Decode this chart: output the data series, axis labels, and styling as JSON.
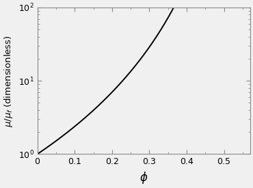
{
  "title": "",
  "xlabel": "$\\phi$",
  "ylabel": "$\\mu/\\mu_f$ (dimensionless)",
  "xlim": [
    0,
    0.57
  ],
  "ylim": [
    1,
    100
  ],
  "phi_max": 0.57,
  "exponent": 4.5,
  "line_color": "#000000",
  "line_width": 1.4,
  "background_color": "#f0f0f0",
  "xticks": [
    0,
    0.1,
    0.2,
    0.3,
    0.4,
    0.5
  ],
  "xlabel_fontsize": 12,
  "ylabel_fontsize": 9.5,
  "tick_fontsize": 9,
  "figsize": [
    3.7,
    2.75
  ],
  "dpi": 100
}
